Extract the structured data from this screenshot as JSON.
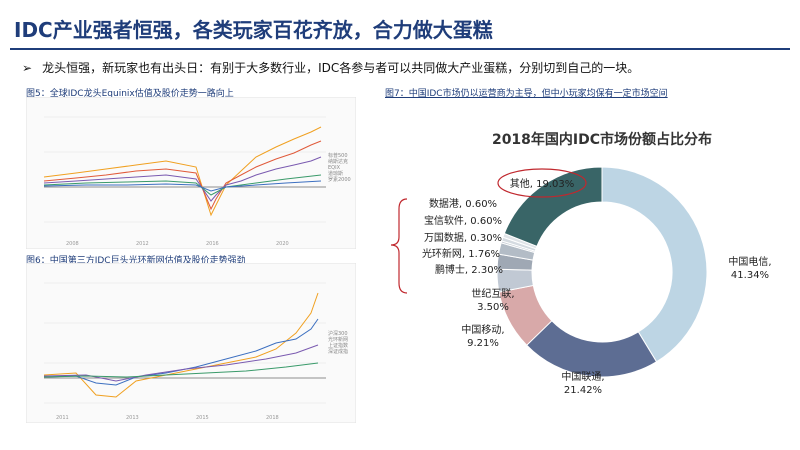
{
  "page": {
    "title": "IDC产业强者恒强，各类玩家百花齐放，合力做大蛋糕",
    "bullet_marker": "➢",
    "bullet_text": "龙头恒强，新玩家也有出头日：有别于大多数行业，IDC各参与者可以共同做大产业蛋糕，分别切到自己的一块。"
  },
  "figures": {
    "fig5_caption": "图5：全球IDC龙头Equinix估值及股价走势一路向上",
    "fig6_caption": "图6：中国第三方IDC巨头光环新网估值及股价走势强劲",
    "fig7_caption": "图7：中国IDC市场仍以运营商为主导，但中小玩家均保有一定市场空间"
  },
  "colors": {
    "accent": "#1f3d7a",
    "telecom": "#bdd5e4",
    "unicom": "#5d6d93",
    "mobile": "#d8a9a9",
    "shiji": "#c1c9d4",
    "others": "#396567",
    "annotation_red": "#c0282e"
  },
  "chart_data": [
    {
      "type": "pie",
      "title": "2018年国内IDC市场份额占比分布",
      "donut": true,
      "slices": [
        {
          "label": "中国电信, 41.34%",
          "value": 41.34
        },
        {
          "label": "中国联通, 21.42%",
          "value": 21.42
        },
        {
          "label": "中国移动, 9.21%",
          "value": 9.21
        },
        {
          "label": "世纪互联, 3.50%",
          "value": 3.5
        },
        {
          "label": "鹏博士, 2.30%",
          "value": 2.3
        },
        {
          "label": "光环新网, 1.76%",
          "value": 1.76
        },
        {
          "label": "万国数据, 0.30%",
          "value": 0.3
        },
        {
          "label": "宝信软件, 0.60%",
          "value": 0.6
        },
        {
          "label": "数据港, 0.60%",
          "value": 0.6
        },
        {
          "label": "其他, 19.03%",
          "value": 19.03
        }
      ],
      "annotation": "9%"
    }
  ]
}
